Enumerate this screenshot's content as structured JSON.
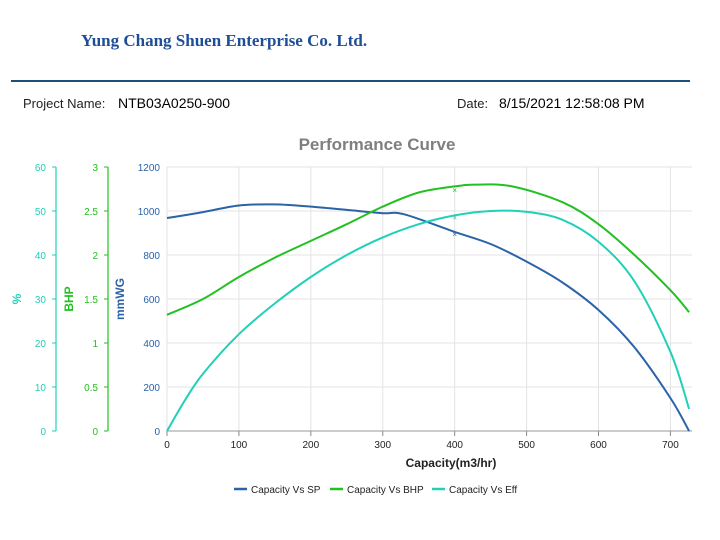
{
  "header": {
    "company": "Yung Chang Shuen Enterprise Co. Ltd.",
    "project_label": "Project Name:",
    "project_value": "NTB03A0250-900",
    "date_label": "Date:",
    "date_value": "8/15/2021 12:58:08 PM"
  },
  "colors": {
    "sp": "#2b63a8",
    "bhp": "#22c022",
    "eff": "#22d0b8",
    "header_blue": "#1f4e96"
  },
  "chart_data": {
    "type": "line",
    "title": "Performance Curve",
    "xlabel": "Capacity(m3/hr)",
    "xlim": [
      0,
      730
    ],
    "x_ticks": [
      0,
      100,
      200,
      300,
      400,
      500,
      600,
      700
    ],
    "grid": true,
    "legend_position": "bottom",
    "axes": {
      "sp": {
        "label": "mmWG",
        "range": [
          0,
          1200
        ],
        "ticks": [
          0,
          200,
          400,
          600,
          800,
          1000,
          1200
        ]
      },
      "bhp": {
        "label": "BHP",
        "range": [
          0,
          3
        ],
        "ticks": [
          "0",
          "0.5",
          "1",
          "1.5",
          "2",
          "2.5",
          "3"
        ]
      },
      "eff": {
        "label": "%",
        "range": [
          0,
          60
        ],
        "ticks": [
          0,
          10,
          20,
          30,
          40,
          50,
          60
        ]
      }
    },
    "series": [
      {
        "key": "sp",
        "name": "Capacity Vs SP",
        "axis": "sp",
        "points": [
          [
            0,
            968
          ],
          [
            50,
            995
          ],
          [
            100,
            1025
          ],
          [
            150,
            1030
          ],
          [
            200,
            1020
          ],
          [
            250,
            1005
          ],
          [
            300,
            990
          ],
          [
            330,
            985
          ],
          [
            400,
            905
          ],
          [
            450,
            850
          ],
          [
            500,
            770
          ],
          [
            550,
            675
          ],
          [
            600,
            550
          ],
          [
            650,
            380
          ],
          [
            700,
            150
          ],
          [
            726,
            0
          ]
        ],
        "marker_point": [
          400,
          895
        ]
      },
      {
        "key": "bhp",
        "name": "Capacity Vs BHP",
        "axis": "bhp",
        "points": [
          [
            0,
            1.32
          ],
          [
            50,
            1.5
          ],
          [
            100,
            1.75
          ],
          [
            150,
            1.97
          ],
          [
            200,
            2.16
          ],
          [
            250,
            2.35
          ],
          [
            300,
            2.55
          ],
          [
            350,
            2.71
          ],
          [
            400,
            2.78
          ],
          [
            430,
            2.8
          ],
          [
            480,
            2.78
          ],
          [
            550,
            2.6
          ],
          [
            600,
            2.35
          ],
          [
            650,
            2.0
          ],
          [
            700,
            1.6
          ],
          [
            726,
            1.35
          ]
        ],
        "marker_point": [
          400,
          2.74
        ]
      },
      {
        "key": "eff",
        "name": "Capacity Vs Eff",
        "axis": "eff",
        "points": [
          [
            0,
            0
          ],
          [
            25,
            7
          ],
          [
            50,
            13
          ],
          [
            100,
            22
          ],
          [
            150,
            29
          ],
          [
            200,
            35
          ],
          [
            250,
            40
          ],
          [
            300,
            44
          ],
          [
            350,
            47
          ],
          [
            400,
            49
          ],
          [
            450,
            50
          ],
          [
            500,
            49.8
          ],
          [
            550,
            48
          ],
          [
            600,
            43
          ],
          [
            650,
            34
          ],
          [
            700,
            18
          ],
          [
            726,
            5
          ]
        ],
        "marker_point": [
          400,
          48.5
        ]
      }
    ]
  }
}
